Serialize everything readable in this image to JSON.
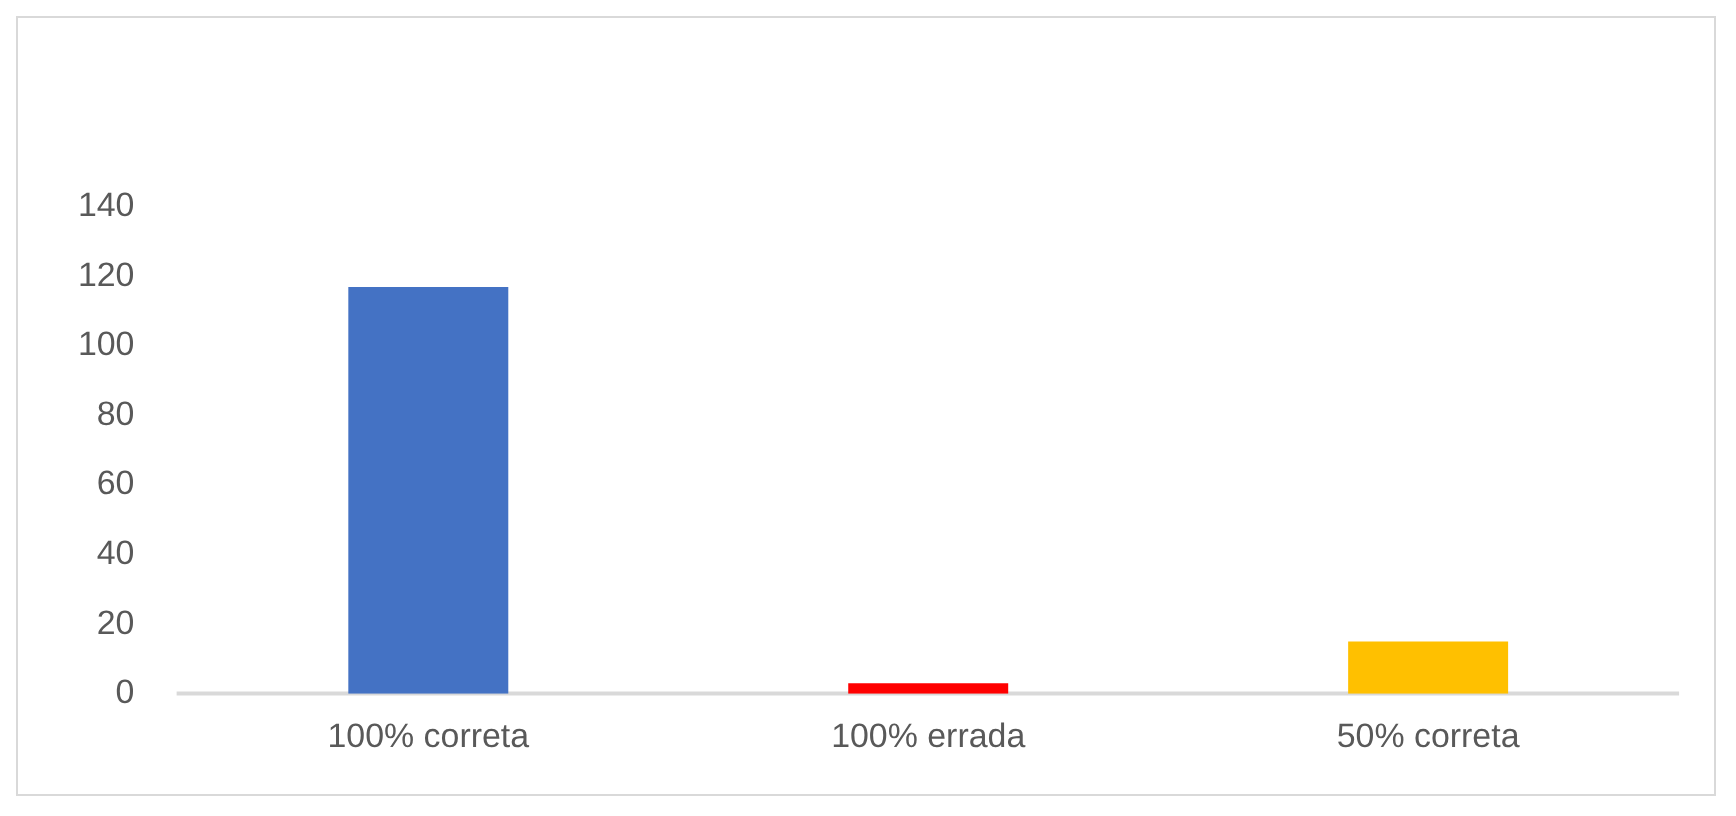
{
  "chart_data": {
    "type": "bar",
    "categories": [
      "100% correta",
      "100% errada",
      "50% correta"
    ],
    "values": [
      117,
      3,
      15
    ],
    "colors": [
      "#4472c4",
      "#ff0000",
      "#ffc000"
    ],
    "ylim": [
      0,
      140
    ],
    "yticks": [
      0,
      20,
      40,
      60,
      80,
      100,
      120,
      140
    ],
    "grid": false,
    "legend": false
  }
}
